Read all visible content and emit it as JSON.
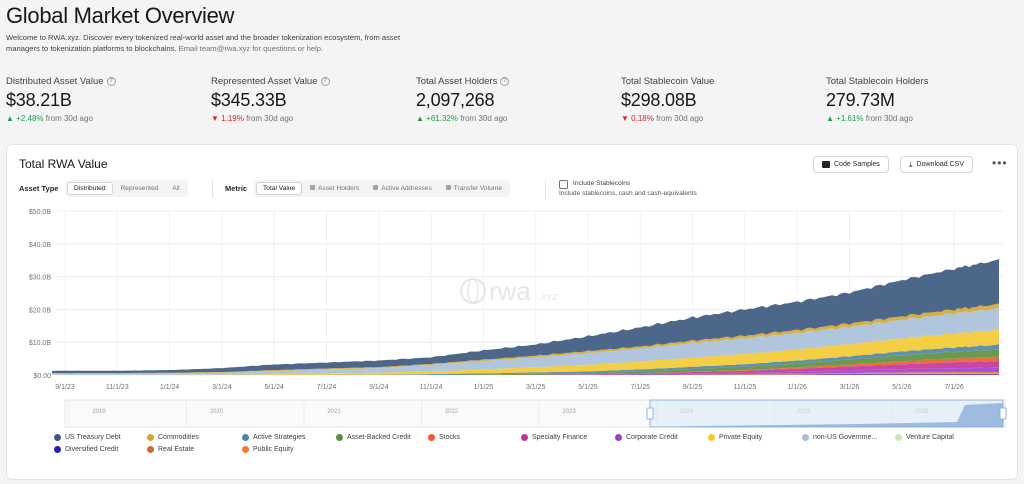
{
  "header": {
    "title": "Global Market Overview",
    "intro_line1": "Welcome to RWA.xyz. Discover every tokenized real-world asset and the broader tokenization ecosystem, from asset",
    "intro_line2": "managers to tokenization platforms to blockchains.",
    "intro_line2_muted": "Email team@rwa.xyz for questions or help."
  },
  "stats": [
    {
      "label": "Distributed Asset Value",
      "value": "$38.21B",
      "change": "+2.48%",
      "direction": "up",
      "suffix": "from 30d ago"
    },
    {
      "label": "Represented Asset Value",
      "value": "$345.33B",
      "change": "1.19%",
      "direction": "down",
      "suffix": "from 30d ago"
    },
    {
      "label": "Total Asset Holders",
      "value": "2,097,268",
      "change": "+61.32%",
      "direction": "up",
      "suffix": "from 30d ago"
    },
    {
      "label": "Total Stablecoin Value",
      "value": "$298.08B",
      "change": "0.18%",
      "direction": "down",
      "suffix": "from 30d ago"
    },
    {
      "label": "Total Stablecoin Holders",
      "value": "279.73M",
      "change": "+1.61%",
      "direction": "up",
      "suffix": "from 30d ago"
    }
  ],
  "card": {
    "title": "Total RWA Value",
    "code_samples": "Code Samples",
    "download_csv": "Download CSV",
    "more": "•••",
    "asset_type_label": "Asset Type",
    "asset_types": [
      "Distributed",
      "Represented",
      "All"
    ],
    "metric_label": "Metric",
    "metrics": [
      "Total Value",
      "Asset Holders",
      "Active Addresses",
      "Transfer Volume"
    ],
    "include_stablecoins": "Include Stablecoins",
    "include_stablecoins_note": "Include stablecoins, cash and cash-equivalents",
    "watermark": "rwa",
    "watermark_suffix": ".xyz"
  },
  "colors": {
    "us_treasury": "#3d5a80",
    "commodities": "#d4a72c",
    "active_strategies": "#4e84a8",
    "asset_backed": "#5a8f3c",
    "stocks": "#e85d2a",
    "specialty": "#c2339a",
    "corporate": "#9b3fd6",
    "private_equity": "#f3c931",
    "non_us_gov": "#a9bfd8",
    "venture": "#c9e8b7",
    "diversified": "#2720b0",
    "real_estate": "#c76b33",
    "public_equity": "#f07a3e"
  },
  "chart_data": {
    "type": "area",
    "title": "Total RWA Value",
    "xlabel": "",
    "ylabel": "",
    "y_ticks": [
      "$50.0B",
      "$40.0B",
      "$30.0B",
      "$20.0B",
      "$10.0B",
      "$0.00"
    ],
    "ylim": [
      0,
      50
    ],
    "y_unit": "B USD",
    "x_ticks": [
      "9/1/23",
      "11/1/23",
      "1/1/24",
      "3/1/24",
      "5/1/24",
      "7/1/24",
      "9/1/24",
      "11/1/24",
      "1/1/25",
      "3/1/25",
      "5/1/25",
      "7/1/25",
      "9/1/25",
      "11/1/25",
      "1/1/26",
      "3/1/26",
      "5/1/26",
      "7/1/26"
    ],
    "navigator_years": [
      "2019",
      "2020",
      "2021",
      "2022",
      "2023",
      "2024",
      "2025",
      "2026"
    ],
    "x": [
      "8/1/23",
      "9/1/23",
      "11/1/23",
      "1/1/24",
      "3/1/24",
      "5/1/24",
      "7/1/24",
      "9/1/24",
      "11/1/24",
      "1/1/25",
      "3/1/25",
      "5/1/25",
      "7/1/25",
      "9/1/25",
      "11/1/25",
      "1/1/26",
      "3/1/26",
      "5/1/26",
      "7/1/26",
      "8/31/26"
    ],
    "series": [
      {
        "name": "US Treasury Debt",
        "color_key": "us_treasury",
        "values": [
          0.7,
          0.7,
          0.7,
          0.8,
          1.2,
          1.7,
          1.8,
          2.0,
          2.0,
          2.8,
          3.4,
          4.5,
          5.8,
          7.0,
          8.0,
          8.6,
          9.4,
          11.0,
          12.4,
          13.5
        ]
      },
      {
        "name": "Commodities",
        "color_key": "commodities",
        "values": [
          0.2,
          0.2,
          0.2,
          0.2,
          0.2,
          0.3,
          0.3,
          0.3,
          0.3,
          0.4,
          0.5,
          0.6,
          0.6,
          0.7,
          0.8,
          0.9,
          1.0,
          1.1,
          1.2,
          1.3
        ]
      },
      {
        "name": "Active Strategies",
        "color_key": "active_strategies",
        "values": [
          0,
          0,
          0,
          0,
          0,
          0,
          0.1,
          0.1,
          0.2,
          0.3,
          0.4,
          0.5,
          0.6,
          0.7,
          0.8,
          0.9,
          1.0,
          1.2,
          1.3,
          1.4
        ]
      },
      {
        "name": "Asset-Backed Credit",
        "color_key": "asset_backed",
        "values": [
          0,
          0,
          0,
          0,
          0,
          0,
          0,
          0,
          0.1,
          0.2,
          0.3,
          0.4,
          0.6,
          0.8,
          1.0,
          1.2,
          1.5,
          1.8,
          2.1,
          2.3
        ]
      },
      {
        "name": "Stocks",
        "color_key": "stocks",
        "values": [
          0,
          0,
          0,
          0,
          0,
          0,
          0,
          0,
          0,
          0,
          0,
          0,
          0,
          0.1,
          0.2,
          0.4,
          0.6,
          0.9,
          1.1,
          1.3
        ]
      },
      {
        "name": "Specialty Finance",
        "color_key": "specialty",
        "values": [
          0,
          0,
          0,
          0,
          0,
          0,
          0,
          0,
          0,
          0,
          0.1,
          0.1,
          0.2,
          0.4,
          0.6,
          0.9,
          1.2,
          1.5,
          1.8,
          2.0
        ]
      },
      {
        "name": "Corporate Credit",
        "color_key": "corporate",
        "values": [
          0,
          0,
          0,
          0,
          0,
          0,
          0,
          0,
          0,
          0,
          0,
          0.1,
          0.2,
          0.3,
          0.4,
          0.6,
          0.8,
          1.0,
          1.2,
          1.3
        ]
      },
      {
        "name": "Private Equity",
        "color_key": "private_equity",
        "values": [
          0.1,
          0.1,
          0.1,
          0.1,
          0.1,
          0.2,
          0.4,
          0.6,
          0.8,
          1.2,
          1.6,
          2.0,
          2.4,
          2.8,
          3.1,
          3.4,
          3.7,
          4.0,
          4.3,
          4.6
        ]
      },
      {
        "name": "non-US Government Debt",
        "color_key": "non_us_gov",
        "values": [
          0.3,
          0.3,
          0.3,
          0.4,
          0.6,
          1.0,
          1.2,
          1.4,
          2.0,
          2.6,
          3.0,
          3.6,
          4.0,
          4.5,
          4.8,
          5.0,
          5.3,
          5.6,
          6.1,
          6.5
        ]
      },
      {
        "name": "Venture Capital",
        "color_key": "venture",
        "values": [
          0,
          0,
          0,
          0,
          0,
          0,
          0,
          0,
          0,
          0,
          0,
          0,
          0,
          0,
          0,
          0,
          0,
          0,
          0,
          0
        ]
      },
      {
        "name": "Diversified Credit",
        "color_key": "diversified",
        "values": [
          0,
          0,
          0,
          0,
          0,
          0,
          0,
          0,
          0,
          0,
          0,
          0,
          0.1,
          0.1,
          0.1,
          0.1,
          0.2,
          0.2,
          0.2,
          0.2
        ]
      },
      {
        "name": "Real Estate",
        "color_key": "real_estate",
        "values": [
          0,
          0,
          0,
          0,
          0,
          0,
          0,
          0,
          0,
          0,
          0,
          0,
          0,
          0.1,
          0.1,
          0.1,
          0.1,
          0.2,
          0.2,
          0.2
        ]
      },
      {
        "name": "Public Equity",
        "color_key": "public_equity",
        "values": [
          0,
          0,
          0,
          0,
          0,
          0,
          0,
          0,
          0,
          0,
          0,
          0,
          0,
          0,
          0.1,
          0.2,
          0.3,
          0.4,
          0.5,
          0.5
        ]
      }
    ]
  },
  "legend": [
    {
      "label": "US Treasury Debt",
      "color_key": "us_treasury"
    },
    {
      "label": "Commodities",
      "color_key": "commodities"
    },
    {
      "label": "Active Strategies",
      "color_key": "active_strategies"
    },
    {
      "label": "Asset-Backed Credit",
      "color_key": "asset_backed"
    },
    {
      "label": "Stocks",
      "color_key": "stocks"
    },
    {
      "label": "Specialty Finance",
      "color_key": "specialty"
    },
    {
      "label": "Corporate Credit",
      "color_key": "corporate"
    },
    {
      "label": "Private Equity",
      "color_key": "private_equity"
    },
    {
      "label": "non-US Governme...",
      "color_key": "non_us_gov"
    },
    {
      "label": "Venture Capital",
      "color_key": "venture"
    },
    {
      "label": "Diversified Credit",
      "color_key": "diversified"
    },
    {
      "label": "Real Estate",
      "color_key": "real_estate"
    },
    {
      "label": "Public Equity",
      "color_key": "public_equity"
    }
  ]
}
